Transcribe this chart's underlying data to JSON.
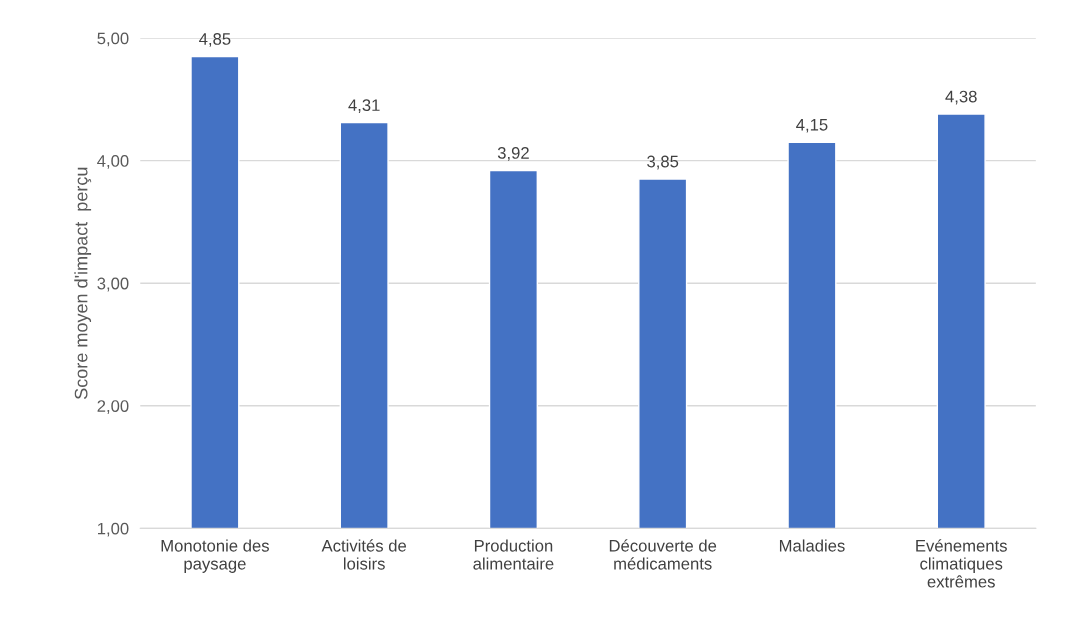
{
  "chart_data": {
    "type": "bar",
    "ylabel": "Score moyen d'impact  perçu",
    "categories": [
      "Monotonie des\npaysage",
      "Activités de\nloisirs",
      "Production\nalimentaire",
      "Découverte de\nmédicaments",
      "Maladies",
      "Evénements\nclimatiques\nextrêmes"
    ],
    "values": [
      4.85,
      4.31,
      3.92,
      3.85,
      4.15,
      4.38
    ],
    "value_labels": [
      "4,85",
      "4,31",
      "3,92",
      "3,85",
      "4,15",
      "4,38"
    ],
    "color": "#4472c4",
    "ylim": [
      1,
      5
    ],
    "yticks": [
      {
        "value": 1,
        "label": "1,00"
      },
      {
        "value": 2,
        "label": "2,00"
      },
      {
        "value": 3,
        "label": "3,00"
      },
      {
        "value": 4,
        "label": "4,00"
      },
      {
        "value": 5,
        "label": "5,00"
      }
    ],
    "grid": "y"
  }
}
